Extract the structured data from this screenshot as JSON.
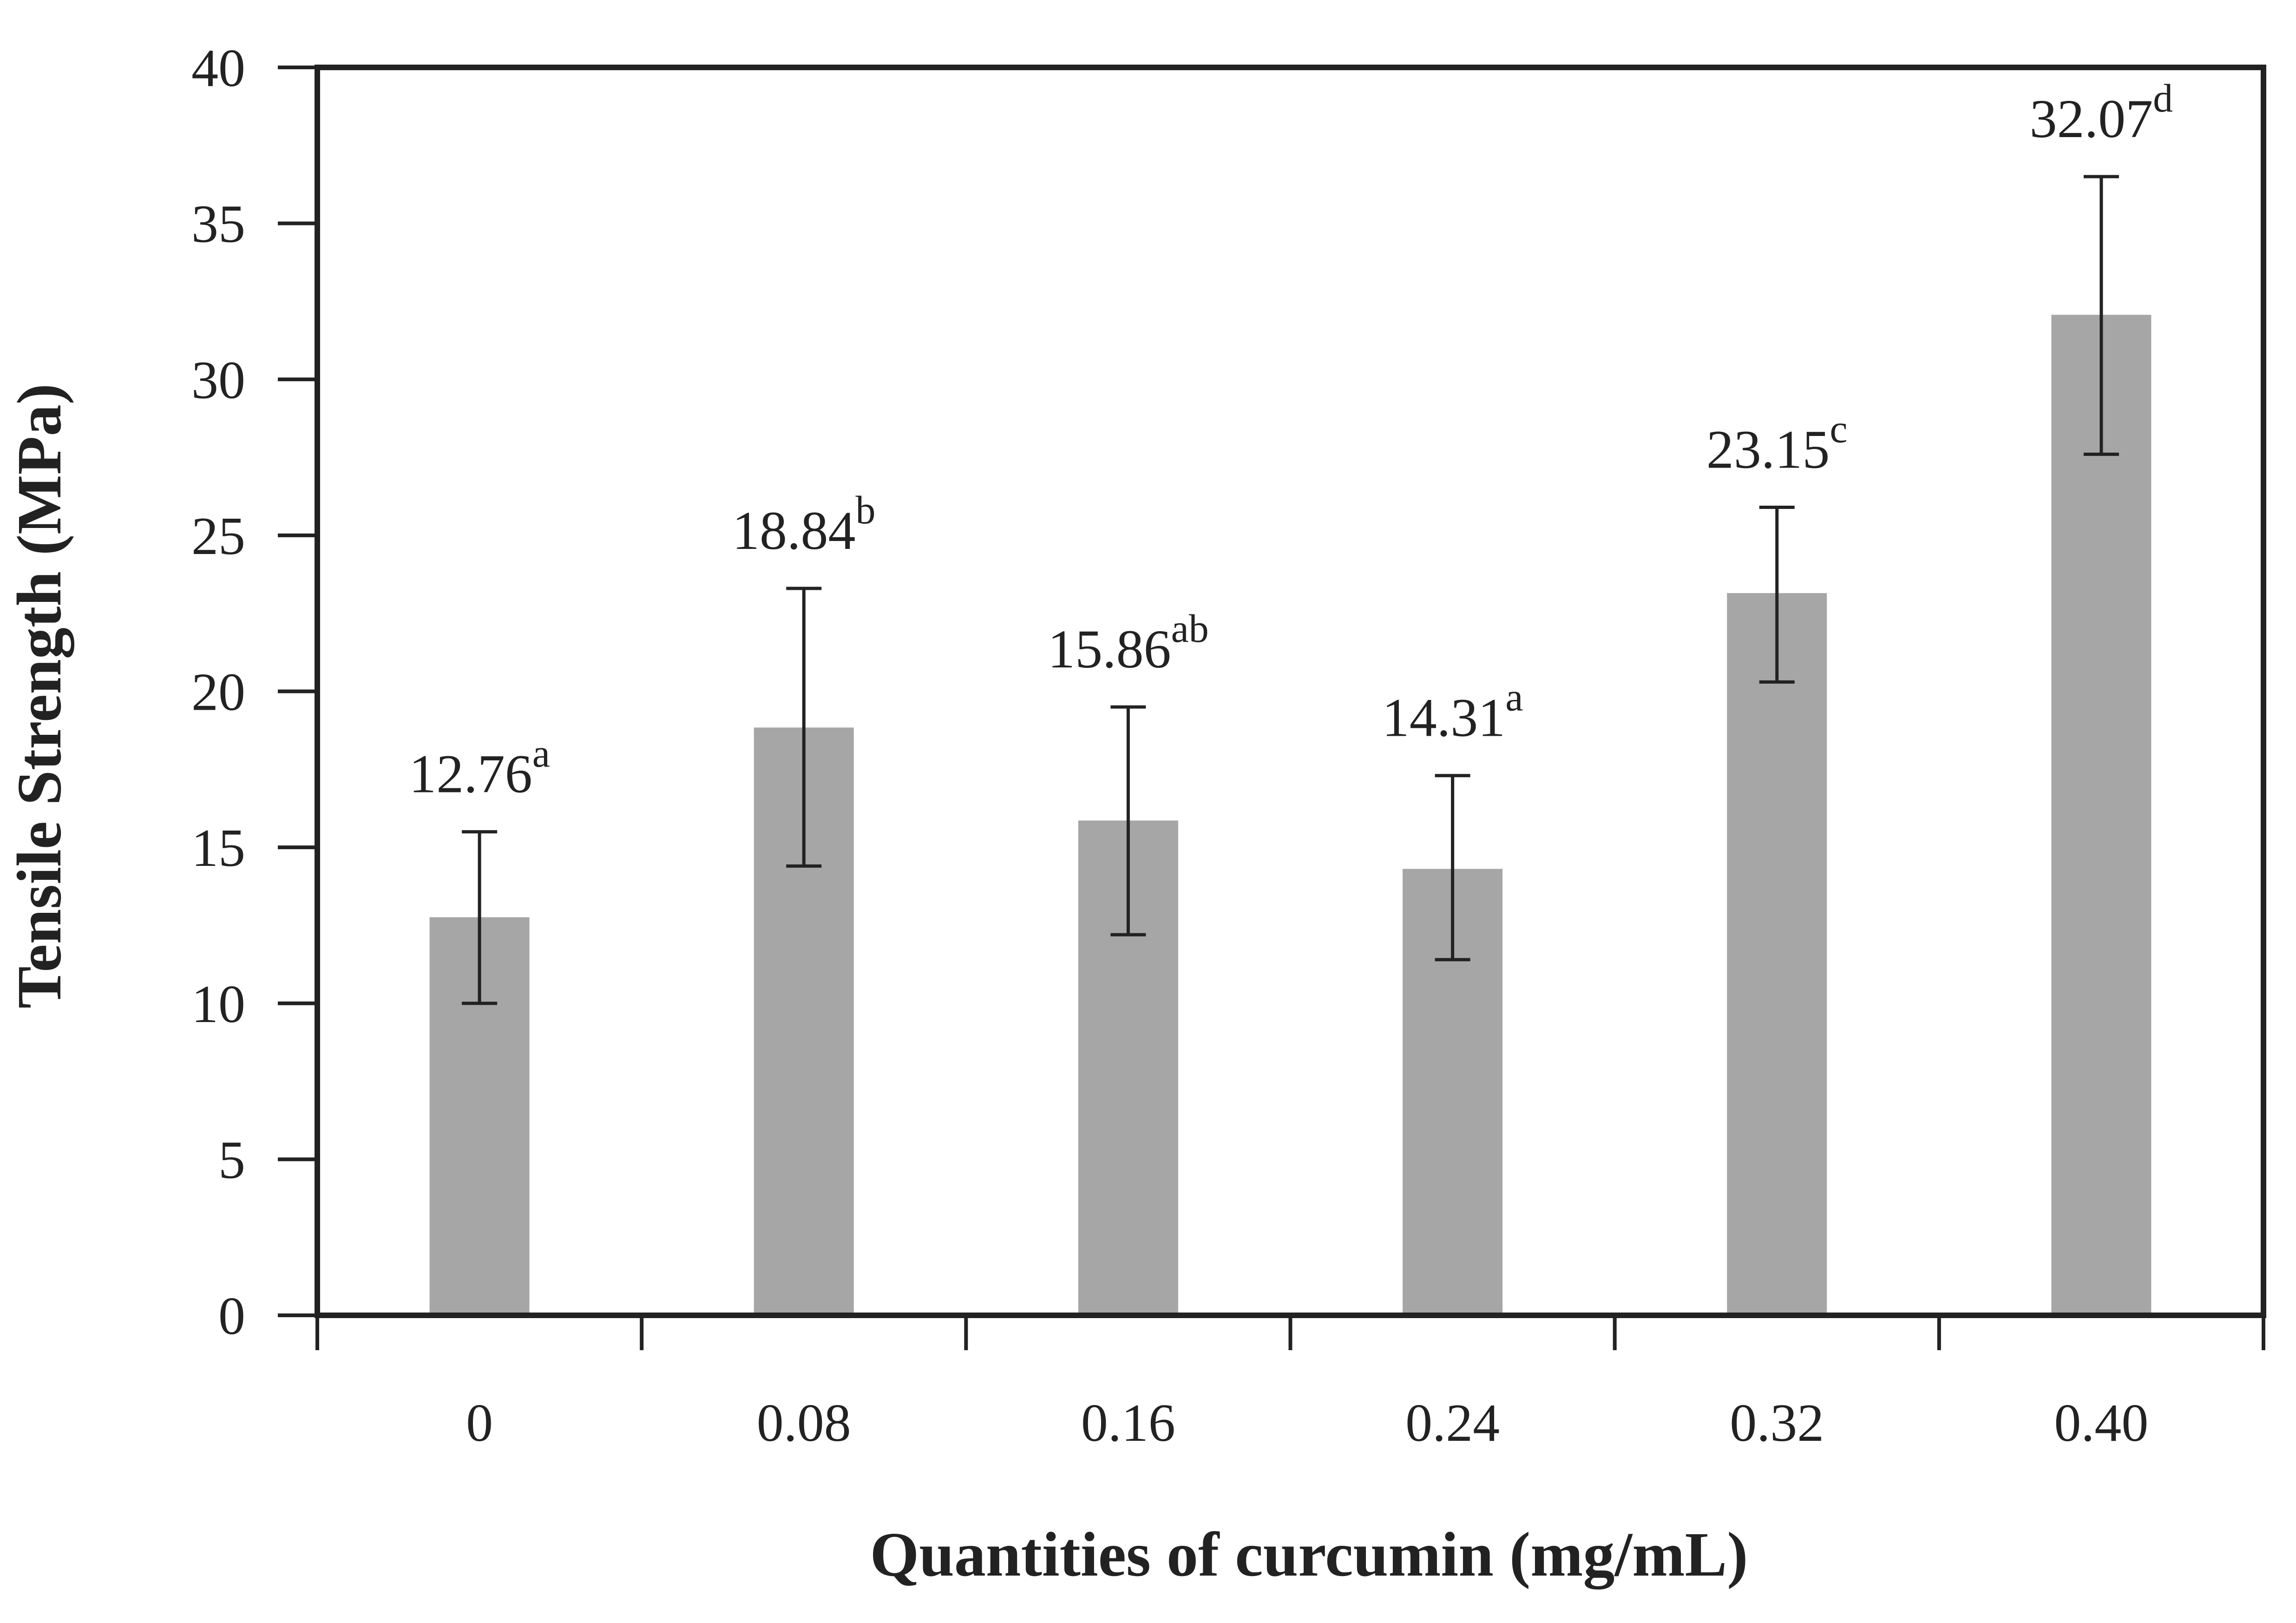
{
  "chart_data": {
    "type": "bar",
    "title": "",
    "xlabel": "Quantities of curcumin (mg/mL)",
    "ylabel": "Tensile Strength (MPa)",
    "ylim": [
      0,
      40
    ],
    "yticks": [
      0,
      5,
      10,
      15,
      20,
      25,
      30,
      35,
      40
    ],
    "categories": [
      "0",
      "0.08",
      "0.16",
      "0.24",
      "0.32",
      "0.40"
    ],
    "values": [
      12.76,
      18.84,
      15.86,
      14.31,
      23.15,
      32.07
    ],
    "error_low": [
      10.0,
      14.4,
      12.2,
      11.4,
      20.3,
      27.6
    ],
    "error_high": [
      15.5,
      23.3,
      19.5,
      17.3,
      25.9,
      36.5
    ],
    "value_labels": [
      "12.76",
      "18.84",
      "15.86",
      "14.31",
      "23.15",
      "32.07"
    ],
    "significance_letters": [
      "a",
      "b",
      "ab",
      "a",
      "c",
      "d"
    ],
    "bar_color": "#a6a6a6",
    "grid": false,
    "legend": "none"
  }
}
